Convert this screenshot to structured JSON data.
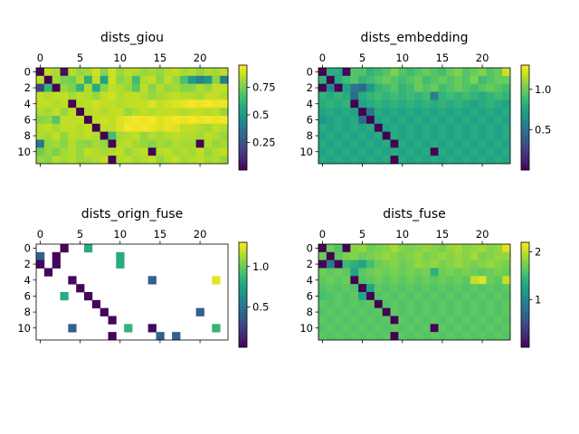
{
  "chart_data": [
    {
      "type": "heatmap",
      "title": "dists_giou",
      "rows": 12,
      "cols": 24,
      "colormap": "viridis",
      "vmin": 0.0,
      "vmax": 0.95,
      "x_ticks": [
        0,
        5,
        10,
        15,
        20
      ],
      "y_ticks": [
        0,
        2,
        4,
        6,
        8,
        10
      ],
      "colorbar_ticks": [
        0.25,
        0.5,
        0.75
      ],
      "values": [
        [
          0.0,
          0.86,
          0.83,
          0.04,
          0.85,
          0.8,
          0.82,
          0.88,
          0.78,
          0.88,
          0.8,
          0.85,
          0.84,
          0.8,
          0.82,
          0.8,
          0.84,
          0.86,
          0.82,
          0.84,
          0.8,
          0.84,
          0.82,
          0.86
        ],
        [
          0.86,
          0.0,
          0.82,
          0.76,
          0.74,
          0.84,
          0.6,
          0.86,
          0.55,
          0.88,
          0.78,
          0.82,
          0.66,
          0.84,
          0.86,
          0.78,
          0.86,
          0.8,
          0.68,
          0.52,
          0.42,
          0.5,
          0.78,
          0.4
        ],
        [
          0.2,
          0.62,
          0.0,
          0.8,
          0.76,
          0.62,
          0.84,
          0.58,
          0.78,
          0.86,
          0.84,
          0.8,
          0.7,
          0.86,
          0.78,
          0.84,
          0.8,
          0.82,
          0.78,
          0.78,
          0.84,
          0.8,
          0.86,
          0.86
        ],
        [
          0.86,
          0.84,
          0.86,
          0.86,
          0.82,
          0.86,
          0.84,
          0.8,
          0.86,
          0.88,
          0.84,
          0.86,
          0.86,
          0.84,
          0.8,
          0.82,
          0.84,
          0.86,
          0.84,
          0.84,
          0.82,
          0.86,
          0.86,
          0.84
        ],
        [
          0.86,
          0.86,
          0.84,
          0.86,
          0.0,
          0.84,
          0.86,
          0.88,
          0.86,
          0.86,
          0.84,
          0.86,
          0.86,
          0.86,
          0.9,
          0.86,
          0.88,
          0.9,
          0.92,
          0.94,
          0.92,
          0.94,
          0.92,
          0.94
        ],
        [
          0.84,
          0.82,
          0.86,
          0.8,
          0.86,
          0.0,
          0.84,
          0.86,
          0.84,
          0.86,
          0.86,
          0.8,
          0.84,
          0.86,
          0.84,
          0.86,
          0.86,
          0.86,
          0.84,
          0.86,
          0.86,
          0.84,
          0.86,
          0.8
        ],
        [
          0.78,
          0.8,
          0.7,
          0.86,
          0.86,
          0.86,
          0.0,
          0.86,
          0.88,
          0.86,
          0.9,
          0.92,
          0.94,
          0.92,
          0.94,
          0.9,
          0.92,
          0.94,
          0.92,
          0.94,
          0.92,
          0.94,
          0.92,
          0.94
        ],
        [
          0.84,
          0.86,
          0.82,
          0.86,
          0.86,
          0.84,
          0.86,
          0.0,
          0.86,
          0.86,
          0.9,
          0.94,
          0.92,
          0.94,
          0.92,
          0.9,
          0.92,
          0.9,
          0.86,
          0.86,
          0.84,
          0.82,
          0.86,
          0.84
        ],
        [
          0.84,
          0.82,
          0.86,
          0.8,
          0.86,
          0.84,
          0.86,
          0.84,
          0.0,
          0.66,
          0.82,
          0.84,
          0.86,
          0.8,
          0.84,
          0.82,
          0.84,
          0.86,
          0.84,
          0.84,
          0.82,
          0.86,
          0.84,
          0.8
        ],
        [
          0.36,
          0.8,
          0.82,
          0.78,
          0.84,
          0.8,
          0.78,
          0.82,
          0.8,
          0.0,
          0.84,
          0.86,
          0.82,
          0.8,
          0.78,
          0.82,
          0.8,
          0.84,
          0.82,
          0.82,
          0.0,
          0.84,
          0.8,
          0.82
        ],
        [
          0.74,
          0.8,
          0.76,
          0.82,
          0.84,
          0.8,
          0.86,
          0.84,
          0.82,
          0.84,
          0.86,
          0.8,
          0.84,
          0.86,
          0.0,
          0.84,
          0.86,
          0.82,
          0.84,
          0.82,
          0.86,
          0.8,
          0.84,
          0.86
        ],
        [
          0.8,
          0.78,
          0.84,
          0.82,
          0.84,
          0.8,
          0.82,
          0.84,
          0.86,
          0.0,
          0.84,
          0.86,
          0.82,
          0.84,
          0.86,
          0.8,
          0.84,
          0.86,
          0.82,
          0.84,
          0.86,
          0.82,
          0.84,
          0.8
        ]
      ]
    },
    {
      "type": "heatmap",
      "title": "dists_embedding",
      "rows": 12,
      "cols": 24,
      "colormap": "viridis",
      "vmin": 0.0,
      "vmax": 1.3,
      "x_ticks": [
        0,
        5,
        10,
        15,
        20
      ],
      "y_ticks": [
        0,
        2,
        4,
        6,
        8,
        10
      ],
      "colorbar_ticks": [
        0.5,
        1.0
      ],
      "values": [
        [
          0.0,
          0.82,
          0.8,
          0.02,
          0.95,
          0.95,
          0.85,
          0.9,
          0.95,
          1.05,
          0.95,
          0.9,
          0.95,
          1.0,
          0.95,
          0.9,
          1.0,
          1.05,
          0.95,
          1.0,
          1.05,
          0.95,
          1.0,
          1.2
        ],
        [
          0.85,
          0.0,
          0.8,
          0.9,
          0.95,
          0.85,
          0.9,
          0.95,
          1.0,
          0.95,
          0.9,
          0.95,
          1.0,
          0.9,
          0.95,
          1.0,
          0.95,
          1.0,
          0.95,
          1.05,
          0.9,
          0.95,
          1.0,
          1.0
        ],
        [
          0.02,
          0.6,
          0.0,
          0.75,
          0.5,
          0.45,
          0.7,
          0.85,
          0.9,
          0.95,
          0.85,
          0.9,
          1.0,
          0.95,
          1.0,
          0.9,
          0.95,
          1.0,
          0.95,
          0.9,
          0.95,
          1.0,
          0.95,
          0.9
        ],
        [
          0.85,
          0.8,
          0.85,
          0.8,
          0.45,
          0.8,
          0.85,
          0.9,
          0.85,
          0.9,
          0.85,
          0.9,
          0.85,
          0.9,
          0.55,
          0.85,
          0.9,
          0.85,
          0.9,
          0.85,
          0.8,
          0.85,
          0.9,
          0.85
        ],
        [
          0.8,
          0.85,
          0.8,
          0.85,
          0.0,
          0.75,
          0.8,
          0.85,
          0.8,
          0.85,
          0.8,
          0.85,
          0.8,
          0.85,
          0.8,
          0.85,
          0.8,
          0.85,
          0.8,
          0.75,
          0.8,
          0.85,
          0.8,
          0.75
        ],
        [
          0.75,
          0.8,
          0.75,
          0.8,
          0.75,
          0.0,
          0.5,
          0.8,
          0.75,
          0.8,
          0.75,
          0.8,
          0.75,
          0.8,
          0.75,
          0.8,
          0.75,
          0.8,
          0.75,
          0.8,
          0.75,
          0.8,
          0.75,
          0.8
        ],
        [
          0.7,
          0.75,
          0.8,
          0.75,
          0.8,
          0.45,
          0.0,
          0.75,
          0.8,
          0.75,
          0.8,
          0.75,
          0.8,
          0.75,
          0.8,
          0.75,
          0.8,
          0.75,
          0.8,
          0.75,
          0.8,
          0.75,
          0.8,
          0.75
        ],
        [
          0.8,
          0.75,
          0.8,
          0.75,
          0.8,
          0.75,
          0.8,
          0.0,
          0.75,
          0.8,
          0.75,
          0.8,
          0.75,
          0.8,
          0.75,
          0.8,
          0.75,
          0.8,
          0.75,
          0.8,
          0.75,
          0.8,
          0.75,
          0.8
        ],
        [
          0.75,
          0.8,
          0.75,
          0.8,
          0.75,
          0.8,
          0.75,
          0.8,
          0.0,
          0.8,
          0.75,
          0.8,
          0.75,
          0.8,
          0.75,
          0.8,
          0.75,
          0.8,
          0.75,
          0.8,
          0.75,
          0.8,
          0.75,
          0.8
        ],
        [
          0.8,
          0.75,
          0.8,
          0.75,
          0.8,
          0.75,
          0.8,
          0.75,
          0.8,
          0.0,
          0.8,
          0.75,
          0.8,
          0.75,
          0.8,
          0.75,
          0.8,
          0.75,
          0.8,
          0.75,
          0.8,
          0.75,
          0.8,
          0.75
        ],
        [
          0.75,
          0.8,
          0.75,
          0.8,
          0.75,
          0.8,
          0.75,
          0.8,
          0.75,
          0.8,
          0.75,
          0.8,
          0.75,
          0.8,
          0.0,
          0.8,
          0.75,
          0.8,
          0.75,
          0.8,
          0.75,
          0.8,
          0.75,
          0.8
        ],
        [
          0.8,
          0.75,
          0.8,
          0.75,
          0.8,
          0.75,
          0.8,
          0.75,
          0.8,
          0.0,
          0.8,
          0.75,
          0.8,
          0.75,
          0.8,
          0.75,
          0.8,
          0.75,
          0.8,
          0.75,
          0.8,
          0.75,
          0.8,
          0.75
        ]
      ]
    },
    {
      "type": "heatmap",
      "title": "dists_orign_fuse",
      "rows": 12,
      "cols": 24,
      "colormap": "viridis",
      "vmin": 0.0,
      "vmax": 1.3,
      "x_ticks": [
        0,
        5,
        10,
        15,
        20
      ],
      "y_ticks": [
        0,
        2,
        4,
        6,
        8,
        10
      ],
      "colorbar_ticks": [
        0.5,
        1.0
      ],
      "sparse_cells": [
        {
          "row": 0,
          "col": 3,
          "value": 0.02
        },
        {
          "row": 0,
          "col": 6,
          "value": 0.8
        },
        {
          "row": 1,
          "col": 0,
          "value": 0.4
        },
        {
          "row": 1,
          "col": 2,
          "value": 0.02
        },
        {
          "row": 1,
          "col": 10,
          "value": 0.8
        },
        {
          "row": 2,
          "col": 0,
          "value": 0.02
        },
        {
          "row": 2,
          "col": 2,
          "value": 0.02
        },
        {
          "row": 2,
          "col": 10,
          "value": 0.8
        },
        {
          "row": 3,
          "col": 1,
          "value": 0.02
        },
        {
          "row": 4,
          "col": 4,
          "value": 0.02
        },
        {
          "row": 4,
          "col": 14,
          "value": 0.4
        },
        {
          "row": 4,
          "col": 22,
          "value": 1.25
        },
        {
          "row": 5,
          "col": 5,
          "value": 0.02
        },
        {
          "row": 6,
          "col": 3,
          "value": 0.8
        },
        {
          "row": 6,
          "col": 6,
          "value": 0.02
        },
        {
          "row": 7,
          "col": 7,
          "value": 0.02
        },
        {
          "row": 8,
          "col": 8,
          "value": 0.02
        },
        {
          "row": 8,
          "col": 20,
          "value": 0.4
        },
        {
          "row": 9,
          "col": 9,
          "value": 0.02
        },
        {
          "row": 10,
          "col": 4,
          "value": 0.4
        },
        {
          "row": 10,
          "col": 11,
          "value": 0.85
        },
        {
          "row": 10,
          "col": 14,
          "value": 0.02
        },
        {
          "row": 10,
          "col": 22,
          "value": 0.85
        },
        {
          "row": 11,
          "col": 9,
          "value": 0.02
        },
        {
          "row": 11,
          "col": 15,
          "value": 0.4
        },
        {
          "row": 11,
          "col": 17,
          "value": 0.4
        }
      ]
    },
    {
      "type": "heatmap",
      "title": "dists_fuse",
      "rows": 12,
      "cols": 24,
      "colormap": "viridis",
      "vmin": 0.0,
      "vmax": 2.2,
      "x_ticks": [
        0,
        5,
        10,
        15,
        20
      ],
      "y_ticks": [
        0,
        2,
        4,
        6,
        8,
        10
      ],
      "colorbar_ticks": [
        1,
        2
      ],
      "values": [
        [
          0.0,
          1.7,
          1.6,
          0.02,
          1.8,
          1.85,
          1.7,
          1.75,
          1.8,
          1.9,
          1.8,
          1.75,
          1.8,
          1.85,
          1.8,
          1.75,
          1.85,
          1.9,
          1.8,
          1.85,
          1.9,
          1.8,
          1.85,
          2.1
        ],
        [
          1.7,
          0.0,
          1.65,
          1.75,
          1.8,
          1.7,
          1.75,
          1.8,
          1.85,
          1.8,
          1.75,
          1.8,
          1.85,
          1.75,
          1.8,
          1.85,
          1.8,
          1.85,
          1.8,
          1.9,
          1.75,
          1.8,
          1.85,
          1.85
        ],
        [
          0.02,
          0.9,
          0.0,
          1.5,
          1.4,
          1.3,
          1.55,
          1.7,
          1.75,
          1.8,
          1.7,
          1.75,
          1.85,
          1.8,
          1.85,
          1.75,
          1.8,
          1.85,
          1.8,
          1.75,
          1.8,
          1.85,
          1.8,
          1.75
        ],
        [
          1.7,
          1.65,
          1.7,
          1.65,
          1.3,
          1.65,
          1.7,
          1.75,
          1.7,
          1.75,
          1.7,
          1.75,
          1.7,
          1.75,
          1.4,
          1.7,
          1.75,
          1.7,
          1.75,
          1.7,
          1.65,
          1.7,
          1.75,
          1.7
        ],
        [
          1.65,
          1.7,
          1.65,
          1.7,
          0.0,
          1.6,
          1.65,
          1.7,
          1.65,
          1.7,
          1.65,
          1.7,
          1.65,
          1.7,
          1.65,
          1.7,
          1.65,
          1.7,
          1.65,
          2.0,
          2.1,
          1.7,
          1.65,
          2.0
        ],
        [
          1.6,
          1.65,
          1.6,
          1.65,
          1.6,
          0.0,
          1.3,
          1.65,
          1.6,
          1.65,
          1.6,
          1.65,
          1.6,
          1.65,
          1.6,
          1.65,
          1.6,
          1.65,
          1.6,
          1.65,
          1.6,
          1.65,
          1.6,
          1.65
        ],
        [
          1.55,
          1.6,
          1.65,
          1.6,
          1.65,
          1.3,
          0.0,
          1.6,
          1.65,
          1.6,
          1.65,
          1.6,
          1.65,
          1.6,
          1.65,
          1.6,
          1.65,
          1.6,
          1.65,
          1.6,
          1.65,
          1.6,
          1.65,
          1.6
        ],
        [
          1.65,
          1.6,
          1.65,
          1.6,
          1.65,
          1.6,
          1.65,
          0.0,
          1.6,
          1.65,
          1.6,
          1.65,
          1.6,
          1.65,
          1.6,
          1.65,
          1.6,
          1.65,
          1.6,
          1.65,
          1.6,
          1.65,
          1.6,
          1.65
        ],
        [
          1.6,
          1.65,
          1.6,
          1.65,
          1.6,
          1.65,
          1.6,
          1.65,
          0.0,
          1.65,
          1.6,
          1.65,
          1.6,
          1.65,
          1.6,
          1.65,
          1.6,
          1.65,
          1.6,
          1.65,
          1.6,
          1.65,
          1.6,
          1.65
        ],
        [
          1.65,
          1.6,
          1.65,
          1.6,
          1.65,
          1.6,
          1.65,
          1.6,
          1.65,
          0.0,
          1.65,
          1.6,
          1.65,
          1.6,
          1.65,
          1.6,
          1.65,
          1.6,
          1.65,
          1.6,
          1.65,
          1.6,
          1.65,
          1.6
        ],
        [
          1.6,
          1.65,
          1.6,
          1.65,
          1.6,
          1.65,
          1.6,
          1.65,
          1.6,
          1.65,
          1.6,
          1.65,
          1.6,
          1.65,
          0.0,
          1.65,
          1.6,
          1.65,
          1.6,
          1.65,
          1.6,
          1.65,
          1.6,
          1.65
        ],
        [
          1.65,
          1.6,
          1.65,
          1.6,
          1.65,
          1.6,
          1.65,
          1.6,
          1.65,
          0.0,
          1.65,
          1.6,
          1.65,
          1.6,
          1.65,
          1.6,
          1.65,
          1.6,
          1.65,
          1.6,
          1.65,
          1.6,
          1.65,
          1.6
        ]
      ]
    }
  ]
}
